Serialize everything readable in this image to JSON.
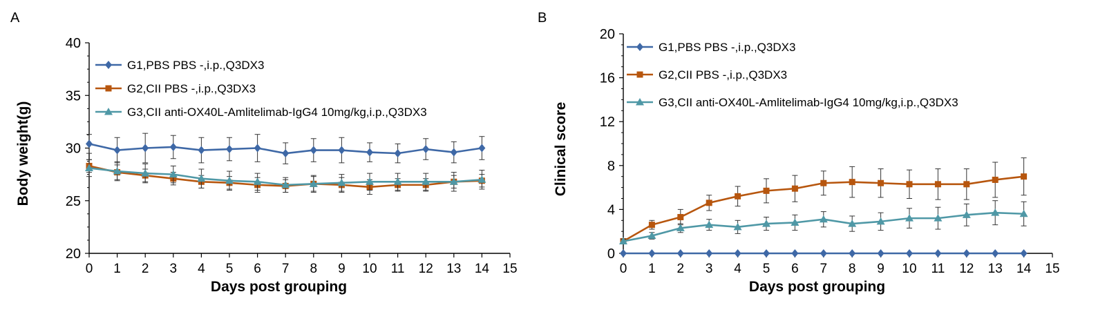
{
  "chart_data": [
    {
      "panel": "A",
      "type": "line",
      "xlabel": "Days post grouping",
      "ylabel": "Body weight(g)",
      "xlim": [
        0,
        15
      ],
      "ylim": [
        20,
        40
      ],
      "xticks": [
        0,
        1,
        2,
        3,
        4,
        5,
        6,
        7,
        8,
        9,
        10,
        11,
        12,
        13,
        14,
        15
      ],
      "yticks": [
        20,
        25,
        30,
        35,
        40
      ],
      "grid": false,
      "legend_position": "top-left",
      "series": [
        {
          "name": "G1,PBS PBS -,i.p.,Q3DX3",
          "color": "#3e68a6",
          "marker": "diamond",
          "x": [
            0,
            1,
            2,
            3,
            4,
            5,
            6,
            7,
            8,
            9,
            10,
            11,
            12,
            13,
            14
          ],
          "y": [
            30.4,
            29.8,
            30.0,
            30.1,
            29.8,
            29.9,
            30.0,
            29.5,
            29.8,
            29.8,
            29.6,
            29.5,
            29.9,
            29.6,
            30.0
          ],
          "err": [
            0.9,
            1.2,
            1.4,
            1.1,
            1.2,
            1.1,
            1.3,
            1.0,
            1.1,
            1.2,
            0.9,
            0.9,
            1.0,
            1.0,
            1.1
          ]
        },
        {
          "name": "G2,CII PBS -,i.p.,Q3DX3",
          "color": "#b7560e",
          "marker": "square",
          "x": [
            0,
            1,
            2,
            3,
            4,
            5,
            6,
            7,
            8,
            9,
            10,
            11,
            12,
            13,
            14
          ],
          "y": [
            28.3,
            27.7,
            27.4,
            27.1,
            26.8,
            26.7,
            26.5,
            26.4,
            26.6,
            26.5,
            26.3,
            26.5,
            26.5,
            26.8,
            26.9
          ],
          "err": [
            0.6,
            0.7,
            0.6,
            0.6,
            0.6,
            0.6,
            0.7,
            0.6,
            0.7,
            0.7,
            0.7,
            0.6,
            0.6,
            0.6,
            0.6
          ]
        },
        {
          "name": "G3,CII anti-OX40L-Amlitelimab-IgG4 10mg/kg,i.p.,Q3DX3",
          "color": "#4f98a6",
          "marker": "triangle",
          "x": [
            0,
            1,
            2,
            3,
            4,
            5,
            6,
            7,
            8,
            9,
            10,
            11,
            12,
            13,
            14
          ],
          "y": [
            28.1,
            27.8,
            27.6,
            27.5,
            27.1,
            26.9,
            26.8,
            26.5,
            26.6,
            26.7,
            26.8,
            26.8,
            26.8,
            26.8,
            27.0
          ],
          "err": [
            0.8,
            0.9,
            0.9,
            0.8,
            0.9,
            0.9,
            0.8,
            0.7,
            0.8,
            0.8,
            0.8,
            0.8,
            0.8,
            0.9,
            0.9
          ]
        }
      ]
    },
    {
      "panel": "B",
      "type": "line",
      "xlabel": "Days post grouping",
      "ylabel": "Clinical score",
      "xlim": [
        0,
        15
      ],
      "ylim": [
        0,
        20
      ],
      "xticks": [
        0,
        1,
        2,
        3,
        4,
        5,
        6,
        7,
        8,
        9,
        10,
        11,
        12,
        13,
        14,
        15
      ],
      "yticks": [
        0,
        4,
        8,
        12,
        16,
        20
      ],
      "grid": false,
      "legend_position": "top-left",
      "series": [
        {
          "name": "G1,PBS PBS -,i.p.,Q3DX3",
          "color": "#3e68a6",
          "marker": "diamond",
          "x": [
            0,
            1,
            2,
            3,
            4,
            5,
            6,
            7,
            8,
            9,
            10,
            11,
            12,
            13,
            14
          ],
          "y": [
            0,
            0,
            0,
            0,
            0,
            0,
            0,
            0,
            0,
            0,
            0,
            0,
            0,
            0,
            0
          ],
          "err": [
            0,
            0,
            0,
            0,
            0,
            0,
            0,
            0,
            0,
            0,
            0,
            0,
            0,
            0,
            0
          ]
        },
        {
          "name": "G2,CII PBS -,i.p.,Q3DX3",
          "color": "#b7560e",
          "marker": "square",
          "x": [
            0,
            1,
            2,
            3,
            4,
            5,
            6,
            7,
            8,
            9,
            10,
            11,
            12,
            13,
            14
          ],
          "y": [
            1.1,
            2.6,
            3.3,
            4.6,
            5.2,
            5.7,
            5.9,
            6.4,
            6.5,
            6.4,
            6.3,
            6.3,
            6.3,
            6.7,
            7.0
          ],
          "err": [
            0.2,
            0.4,
            0.7,
            0.7,
            0.9,
            1.1,
            1.2,
            1.1,
            1.4,
            1.3,
            1.3,
            1.4,
            1.4,
            1.6,
            1.7
          ]
        },
        {
          "name": "G3,CII anti-OX40L-Amlitelimab-IgG4 10mg/kg,i.p.,Q3DX3",
          "color": "#4f98a6",
          "marker": "triangle",
          "x": [
            0,
            1,
            2,
            3,
            4,
            5,
            6,
            7,
            8,
            9,
            10,
            11,
            12,
            13,
            14
          ],
          "y": [
            1.1,
            1.6,
            2.3,
            2.6,
            2.4,
            2.7,
            2.8,
            3.1,
            2.7,
            2.9,
            3.2,
            3.2,
            3.5,
            3.7,
            3.6
          ],
          "err": [
            0.2,
            0.3,
            0.4,
            0.5,
            0.6,
            0.6,
            0.7,
            0.7,
            0.7,
            0.8,
            0.9,
            1.0,
            1.0,
            1.1,
            1.1
          ]
        }
      ]
    }
  ]
}
